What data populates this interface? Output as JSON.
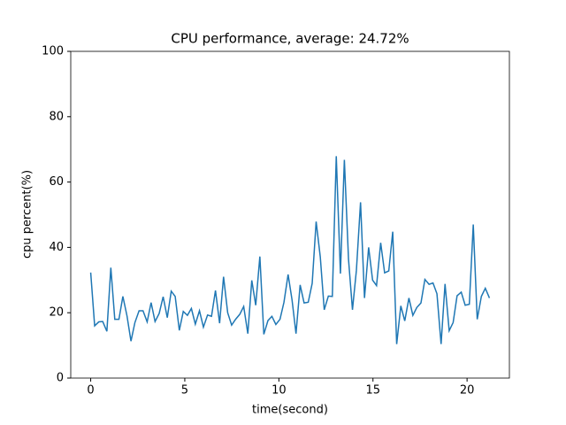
{
  "chart_data": {
    "type": "line",
    "title": "CPU performance, average: 24.72%",
    "x_label": "time(second)",
    "y_label": "cpu percent(%)",
    "x": [
      0,
      0.21,
      0.43,
      0.64,
      0.86,
      1.07,
      1.28,
      1.5,
      1.71,
      1.93,
      2.14,
      2.35,
      2.57,
      2.78,
      3.0,
      3.21,
      3.42,
      3.64,
      3.85,
      4.07,
      4.28,
      4.49,
      4.71,
      4.92,
      5.14,
      5.35,
      5.56,
      5.78,
      5.99,
      6.21,
      6.42,
      6.63,
      6.85,
      7.06,
      7.28,
      7.49,
      7.7,
      7.92,
      8.13,
      8.35,
      8.56,
      8.77,
      8.99,
      9.2,
      9.42,
      9.63,
      9.84,
      10.06,
      10.27,
      10.49,
      10.7,
      10.91,
      11.13,
      11.34,
      11.56,
      11.77,
      11.98,
      12.2,
      12.41,
      12.63,
      12.84,
      13.05,
      13.27,
      13.48,
      13.7,
      13.91,
      14.12,
      14.34,
      14.55,
      14.77,
      14.98,
      15.19,
      15.41,
      15.62,
      15.84,
      16.05,
      16.26,
      16.48,
      16.69,
      16.91,
      17.12,
      17.33,
      17.55,
      17.76,
      17.98,
      18.19,
      18.4,
      18.62,
      18.83,
      19.05,
      19.26,
      19.47,
      19.69,
      19.9,
      20.12,
      20.33,
      20.54,
      20.76,
      20.97,
      21.19
    ],
    "series": [
      {
        "color": "#1f77b4",
        "values": [
          32.3,
          16,
          17.2,
          17.3,
          14.3,
          33.8,
          18,
          18,
          25,
          19,
          11.3,
          17,
          20.6,
          20.6,
          17.2,
          23.1,
          17.3,
          19.8,
          24.9,
          18.5,
          26.6,
          25,
          14.6,
          20.4,
          19.2,
          21.3,
          16.5,
          20.6,
          15.6,
          19.3,
          18.9,
          26.8,
          16.8,
          31,
          20,
          16.2,
          18,
          19.5,
          21.9,
          13.6,
          29.9,
          22.3,
          37.2,
          13.4,
          17.6,
          18.9,
          16.4,
          18,
          23.2,
          31.7,
          23.9,
          13.6,
          28.5,
          23,
          23.2,
          29,
          47.9,
          37.1,
          20.9,
          25.1,
          25,
          67.9,
          32,
          66.8,
          36.4,
          20.9,
          33,
          53.8,
          24.5,
          40,
          30,
          28.3,
          41.4,
          32.2,
          32.8,
          44.8,
          10.4,
          22.1,
          17.5,
          24.5,
          19.2,
          21.6,
          23,
          30.2,
          28.7,
          29.1,
          25.8,
          10.4,
          28.8,
          14.5,
          17,
          25.2,
          26.3,
          22.3,
          22.6,
          47,
          18,
          25,
          27.5,
          24.5
        ]
      }
    ],
    "xlim": [
      -1.06,
      22.25
    ],
    "ylim": [
      0,
      100
    ],
    "xticks": [
      0,
      5,
      10,
      15,
      20
    ],
    "yticks": [
      0,
      20,
      40,
      60,
      80,
      100
    ]
  }
}
